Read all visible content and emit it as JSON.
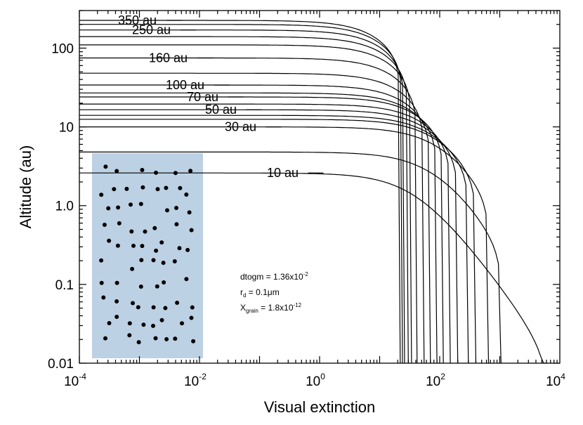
{
  "chart_data": {
    "type": "line",
    "xlabel": "Visual extinction",
    "ylabel": "Altitude (au)",
    "x_scale": "log",
    "y_scale": "log",
    "xlim": [
      0.0001,
      10000
    ],
    "ylim": [
      0.01,
      300
    ],
    "x_ticks": [
      {
        "value": 0.0001,
        "base": "10",
        "exp": "-4"
      },
      {
        "value": 0.01,
        "base": "10",
        "exp": "-2"
      },
      {
        "value": 1,
        "base": "10",
        "exp": "0"
      },
      {
        "value": 100,
        "base": "10",
        "exp": "2"
      },
      {
        "value": 10000,
        "base": "10",
        "exp": "4"
      }
    ],
    "y_ticks": [
      {
        "value": 0.01,
        "label": "0.01"
      },
      {
        "value": 0.1,
        "label": "0.1"
      },
      {
        "value": 1,
        "label": "1.0"
      },
      {
        "value": 10,
        "label": "10"
      },
      {
        "value": 100,
        "label": "100"
      }
    ],
    "grid": false,
    "series": [
      {
        "name": "10 au",
        "top": 2.6,
        "av_knee": 40,
        "av_max": 6000,
        "labeled": true
      },
      {
        "name": "",
        "top": 4.8,
        "av_knee": 90,
        "av_max": 1050,
        "labeled": false
      },
      {
        "name": "30 au",
        "top": 10.0,
        "av_knee": 130,
        "av_max": 650,
        "labeled": true
      },
      {
        "name": "",
        "top": 12.5,
        "av_knee": 130,
        "av_max": 400,
        "labeled": false
      },
      {
        "name": "",
        "top": 14.0,
        "av_knee": 120,
        "av_max": 300,
        "labeled": false
      },
      {
        "name": "50 au",
        "top": 16.5,
        "av_knee": 110,
        "av_max": 200,
        "labeled": true
      },
      {
        "name": "",
        "top": 19.5,
        "av_knee": 100,
        "av_max": 150,
        "labeled": false
      },
      {
        "name": "70 au",
        "top": 24.0,
        "av_knee": 85,
        "av_max": 115,
        "labeled": true
      },
      {
        "name": "",
        "top": 27.0,
        "av_knee": 75,
        "av_max": 90,
        "labeled": false
      },
      {
        "name": "100 au",
        "top": 34.0,
        "av_knee": 60,
        "av_max": 70,
        "labeled": true
      },
      {
        "name": "",
        "top": 48.0,
        "av_knee": 48,
        "av_max": 55,
        "labeled": false
      },
      {
        "name": "160 au",
        "top": 75.0,
        "av_knee": 38,
        "av_max": 42,
        "labeled": true
      },
      {
        "name": "",
        "top": 110.0,
        "av_knee": 32,
        "av_max": 34,
        "labeled": false
      },
      {
        "name": "",
        "top": 140.0,
        "av_knee": 28,
        "av_max": 30,
        "labeled": false
      },
      {
        "name": "250 au",
        "top": 170.0,
        "av_knee": 25,
        "av_max": 26,
        "labeled": true
      },
      {
        "name": "",
        "top": 200.0,
        "av_knee": 23,
        "av_max": 24,
        "labeled": false
      },
      {
        "name": "350 au",
        "top": 225.0,
        "av_knee": 21,
        "av_max": 22,
        "labeled": true
      }
    ],
    "annotations": {
      "dtogm": {
        "text": "dtogm = 1.36x10",
        "exp": "-2"
      },
      "rd": {
        "text": "r",
        "sub": "d",
        "rest": " = 0.1μm"
      },
      "xgrain": {
        "text": "X",
        "sub": "grain",
        "rest": " = 1.8x10",
        "exp": "-12"
      }
    },
    "inset": {
      "fill": "#bcd1e3",
      "description_color": "#000000",
      "grain_count": 76
    }
  }
}
